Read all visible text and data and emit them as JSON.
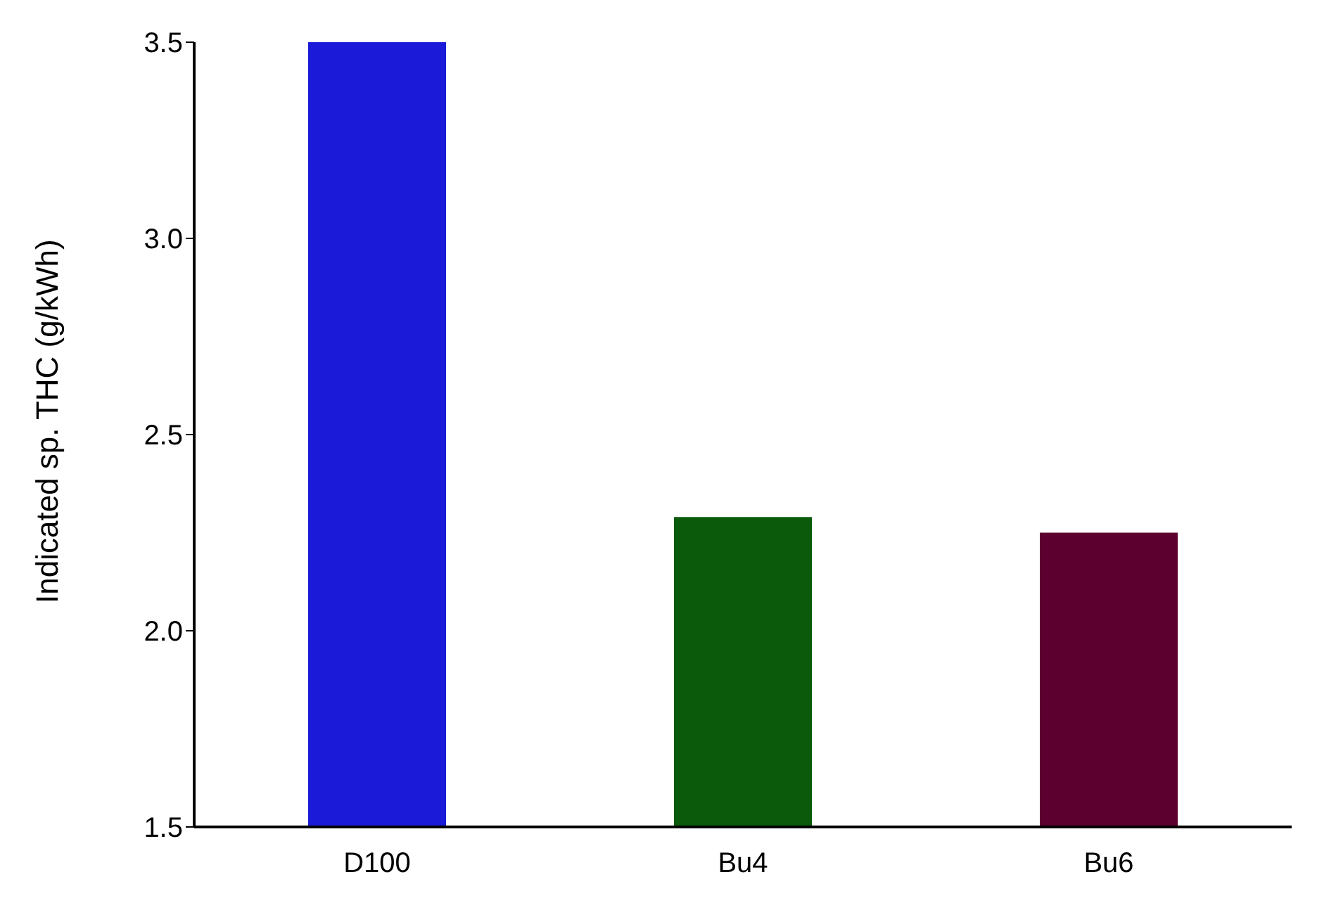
{
  "chart_data": {
    "type": "bar",
    "ylabel": "Indicated sp. THC (g/kWh)",
    "categories": [
      "D100",
      "Bu4",
      "Bu6"
    ],
    "values": [
      3.5,
      2.29,
      2.25
    ],
    "colors": [
      "#1a1ad8",
      "#0b5a0b",
      "#5c0030"
    ],
    "ylim": [
      1.5,
      3.5
    ],
    "yticks": [
      {
        "value": 1.5,
        "label": "1.5"
      },
      {
        "value": 2,
        "label": "2.0"
      },
      {
        "value": 2.5,
        "label": "2.5"
      },
      {
        "value": 3,
        "label": "3.0"
      },
      {
        "value": 3.5,
        "label": "3.5"
      }
    ],
    "grid": false,
    "legend": false
  }
}
